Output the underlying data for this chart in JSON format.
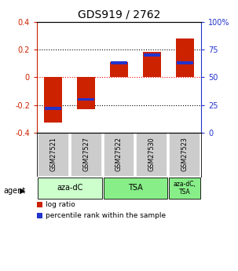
{
  "title": "GDS919 / 2762",
  "samples": [
    "GSM27521",
    "GSM27527",
    "GSM27522",
    "GSM27530",
    "GSM27523"
  ],
  "log_ratios": [
    -0.33,
    -0.23,
    0.11,
    0.18,
    0.28
  ],
  "percentile_ranks": [
    22,
    30,
    63,
    70,
    63
  ],
  "ylim": [
    -0.4,
    0.4
  ],
  "right_ylim": [
    0,
    100
  ],
  "bar_color": "#cc2200",
  "percentile_color": "#2233cc",
  "group_ranges": [
    [
      0,
      1
    ],
    [
      2,
      3
    ],
    [
      4,
      4
    ]
  ],
  "group_labels": [
    "aza-dC",
    "TSA",
    "aza-dC,\nTSA"
  ],
  "group_colors": [
    "#ccffcc",
    "#88ee88",
    "#88ee88"
  ],
  "agent_label": "agent",
  "legend_items": [
    {
      "color": "#cc2200",
      "label": "log ratio"
    },
    {
      "color": "#2233cc",
      "label": "percentile rank within the sample"
    }
  ],
  "sample_box_color": "#cccccc",
  "title_fontsize": 10,
  "axis_color_left": "#cc2200",
  "axis_color_right": "#2233cc",
  "bar_width": 0.55
}
